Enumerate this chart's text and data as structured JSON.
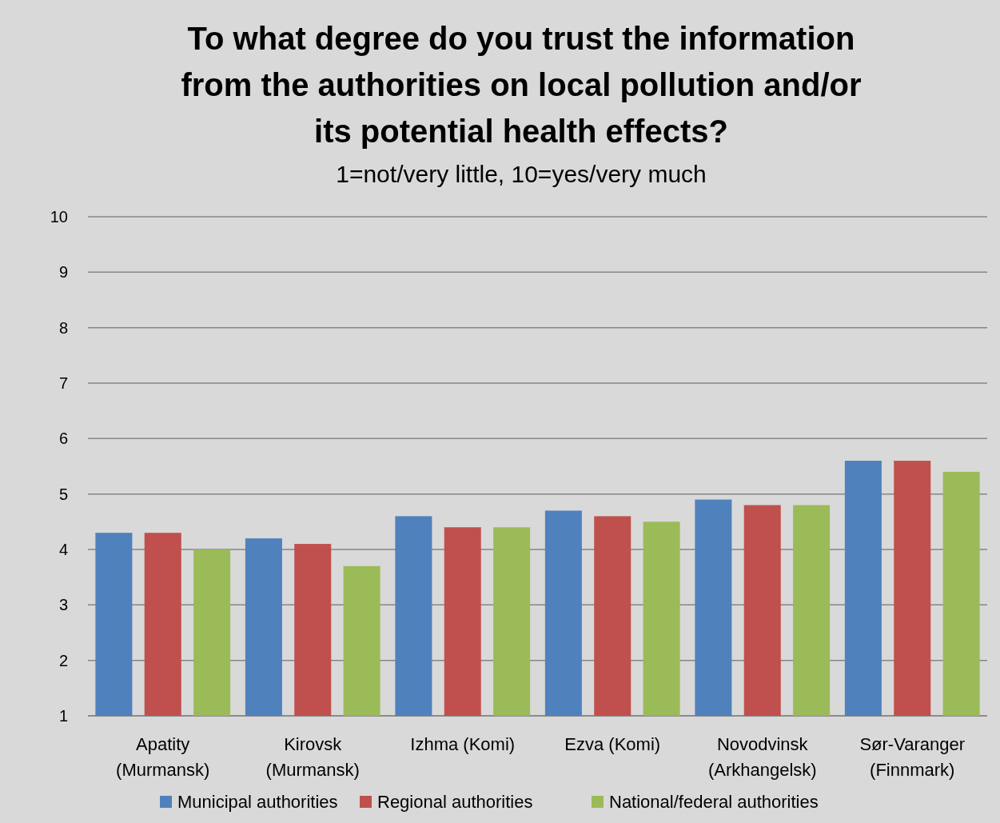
{
  "chart_data": {
    "type": "bar",
    "title": "To what degree do you trust the information\nfrom the authorities on local pollution and/or\nits potential health effects?",
    "subtitle": "1=not/very little, 10=yes/very much",
    "categories": [
      "Apatity\n(Murmansk)",
      "Kirovsk\n(Murmansk)",
      "Izhma (Komi)",
      "Ezva (Komi)",
      "Novodvinsk\n(Arkhangelsk)",
      "Sør-Varanger\n(Finnmark)"
    ],
    "series": [
      {
        "name": "Municipal authorities",
        "color": "#4f81bd",
        "values": [
          4.3,
          4.2,
          4.6,
          4.7,
          4.9,
          5.6
        ]
      },
      {
        "name": "Regional authorities",
        "color": "#c0504d",
        "values": [
          4.3,
          4.1,
          4.4,
          4.6,
          4.8,
          5.6
        ]
      },
      {
        "name": "National/federal authorities",
        "color": "#9bbb59",
        "values": [
          4.0,
          3.7,
          4.4,
          4.5,
          4.8,
          5.4
        ]
      }
    ],
    "ylim": [
      1,
      10
    ],
    "yticks": [
      1,
      2,
      3,
      4,
      5,
      6,
      7,
      8,
      9,
      10
    ],
    "grid": "y",
    "legend": "bottom"
  }
}
